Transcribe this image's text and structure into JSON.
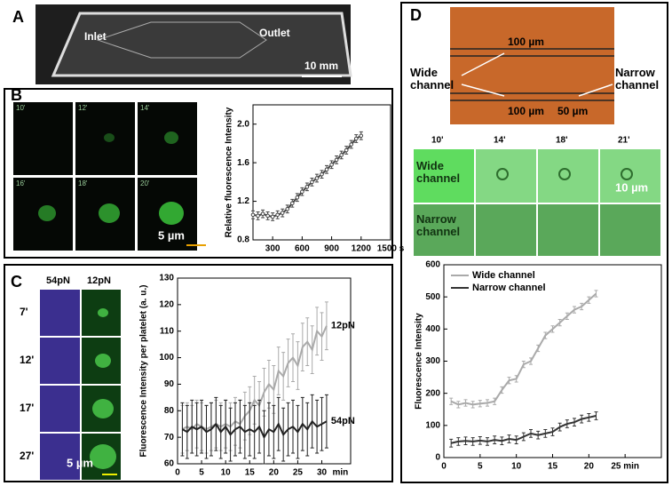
{
  "figure": {
    "A": {
      "letter": "A",
      "inlet": "Inlet",
      "outlet": "Outlet",
      "scale": "10 mm"
    },
    "B": {
      "letter": "B",
      "times": [
        "10'",
        "12'",
        "14'",
        "16'",
        "18'",
        "20'"
      ],
      "scale": "5 µm"
    },
    "C": {
      "letter": "C",
      "columns": [
        "54pN",
        "12pN"
      ],
      "times": [
        "7'",
        "12'",
        "17'",
        "27'"
      ],
      "scale": "5 µm"
    },
    "D": {
      "letter": "D",
      "top_width": "100 µm",
      "wide": "Wide channel",
      "narrow": "Narrow channel",
      "bottom_width": "100 µm",
      "narrow_width": "50 µm",
      "times": [
        "10'",
        "14'",
        "18'",
        "21'"
      ],
      "rows": [
        "Wide channel",
        "Narrow channel"
      ],
      "scale": "10 µm"
    }
  },
  "chart_data": [
    {
      "type": "line",
      "ylabel": "Relative fluorescence Intensity",
      "markers": true,
      "x": [
        100,
        150,
        200,
        250,
        300,
        350,
        400,
        450,
        500,
        550,
        600,
        650,
        700,
        750,
        800,
        850,
        900,
        950,
        1000,
        1050,
        1100,
        1150,
        1200
      ],
      "series": [
        {
          "color": "#444444",
          "values": [
            1.06,
            1.05,
            1.07,
            1.05,
            1.04,
            1.06,
            1.08,
            1.12,
            1.18,
            1.24,
            1.3,
            1.35,
            1.4,
            1.44,
            1.48,
            1.53,
            1.58,
            1.63,
            1.68,
            1.73,
            1.79,
            1.85,
            1.88
          ],
          "errors": [
            0.04,
            0.04,
            0.04,
            0.04,
            0.04,
            0.04,
            0.04,
            0.04,
            0.04,
            0.04,
            0.04,
            0.04,
            0.04,
            0.04,
            0.04,
            0.04,
            0.04,
            0.04,
            0.04,
            0.04,
            0.04,
            0.04,
            0.04
          ]
        }
      ],
      "xlim": [
        100,
        1500
      ],
      "xticks": [
        300,
        600,
        900,
        1200,
        {
          "value": 1500,
          "label": "1500 s"
        }
      ],
      "ylim": [
        0.8,
        2.2
      ],
      "yticks": [
        0.8,
        1.2,
        1.6,
        {
          "value": 2,
          "label": "2.0"
        }
      ]
    },
    {
      "type": "line",
      "ylabel": "Fluorescence Intensity per platelet (a. u.)",
      "x_unit": "min",
      "legend": "line-end",
      "x": [
        1,
        2,
        3,
        4,
        5,
        6,
        7,
        8,
        9,
        10,
        11,
        12,
        13,
        14,
        15,
        16,
        17,
        18,
        19,
        20,
        21,
        22,
        23,
        24,
        25,
        26,
        27,
        28,
        29,
        30,
        31
      ],
      "series": [
        {
          "name": "12pN",
          "color": "#aaaaaa",
          "values": [
            73,
            74,
            73,
            75,
            74,
            73,
            74,
            75,
            74,
            75,
            74,
            76,
            75,
            78,
            80,
            84,
            82,
            87,
            90,
            88,
            95,
            93,
            98,
            100,
            97,
            104,
            106,
            103,
            110,
            108,
            112
          ],
          "errors": [
            9,
            9,
            9,
            9,
            9,
            9,
            9,
            9,
            9,
            9,
            9,
            9,
            9,
            9,
            9,
            9,
            9,
            9,
            9,
            9,
            9,
            9,
            9,
            9,
            9,
            9,
            9,
            9,
            9,
            9,
            9
          ]
        },
        {
          "name": "54pN",
          "color": "#222222",
          "values": [
            73,
            72,
            74,
            73,
            74,
            72,
            73,
            75,
            72,
            74,
            71,
            73,
            74,
            72,
            73,
            72,
            74,
            70,
            73,
            72,
            75,
            71,
            73,
            74,
            72,
            75,
            73,
            76,
            74,
            75,
            76
          ],
          "errors": [
            10,
            10,
            10,
            10,
            10,
            10,
            10,
            10,
            10,
            10,
            10,
            10,
            10,
            10,
            10,
            10,
            10,
            10,
            10,
            10,
            10,
            10,
            10,
            10,
            10,
            10,
            10,
            10,
            10,
            10,
            10
          ]
        }
      ],
      "xlim": [
        0,
        36
      ],
      "xticks": [
        0,
        5,
        10,
        15,
        20,
        25,
        30
      ],
      "ylim": [
        60,
        130
      ],
      "yticks": [
        60,
        70,
        80,
        90,
        100,
        110,
        120,
        130
      ]
    },
    {
      "type": "line",
      "ylabel": "Fluorescence Intensity",
      "legend": "upper left",
      "x": [
        1,
        2,
        3,
        4,
        5,
        6,
        7,
        8,
        9,
        10,
        11,
        12,
        13,
        14,
        15,
        16,
        17,
        18,
        19,
        20,
        21
      ],
      "series": [
        {
          "name": "Wide channel",
          "color": "#aaaaaa",
          "values": [
            175,
            165,
            170,
            165,
            168,
            170,
            175,
            210,
            240,
            245,
            290,
            300,
            340,
            380,
            400,
            420,
            440,
            460,
            470,
            490,
            510
          ],
          "errors": [
            10,
            10,
            10,
            10,
            10,
            10,
            10,
            10,
            10,
            10,
            10,
            10,
            10,
            10,
            10,
            10,
            10,
            10,
            10,
            10,
            10
          ]
        },
        {
          "name": "Narrow channel",
          "color": "#333333",
          "values": [
            45,
            50,
            52,
            50,
            53,
            50,
            55,
            52,
            58,
            55,
            65,
            75,
            70,
            75,
            80,
            95,
            105,
            110,
            120,
            125,
            130
          ],
          "errors": [
            12,
            12,
            12,
            12,
            12,
            12,
            12,
            12,
            12,
            12,
            12,
            12,
            12,
            12,
            12,
            12,
            12,
            12,
            12,
            12,
            12
          ]
        }
      ],
      "xlim": [
        0,
        30
      ],
      "xticks": [
        0,
        5,
        10,
        15,
        20,
        {
          "value": 25,
          "label": "25 min"
        }
      ],
      "ylim": [
        0,
        600
      ],
      "yticks": [
        0,
        100,
        200,
        300,
        400,
        500,
        600
      ]
    }
  ]
}
